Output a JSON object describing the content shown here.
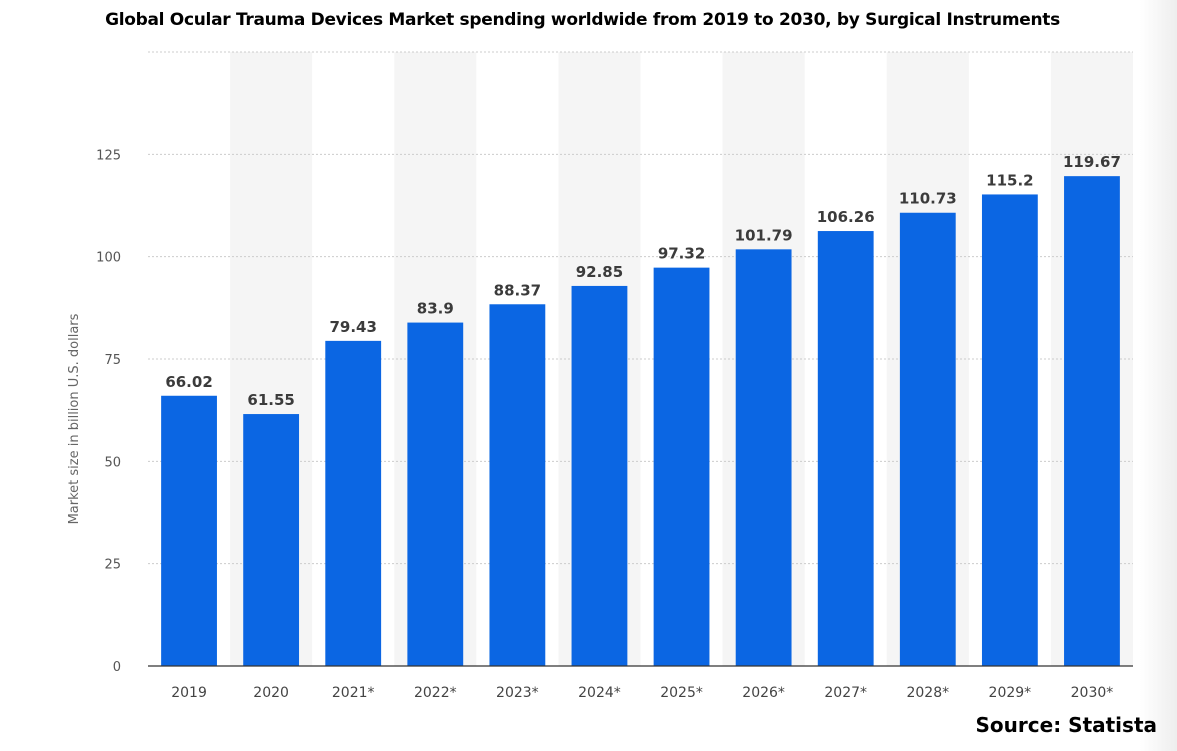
{
  "chart_data": {
    "type": "bar",
    "title": "Global Ocular Trauma Devices Market spending worldwide from 2019 to 2030, by Surgical Instruments",
    "xlabel": "",
    "ylabel": "Market size in billion U.S. dollars",
    "categories": [
      "2019",
      "2020",
      "2021*",
      "2022*",
      "2023*",
      "2024*",
      "2025*",
      "2026*",
      "2027*",
      "2028*",
      "2029*",
      "2030*"
    ],
    "values": [
      66.02,
      61.55,
      79.43,
      83.9,
      88.37,
      92.85,
      97.32,
      101.79,
      106.26,
      110.73,
      115.2,
      119.67
    ],
    "value_labels": [
      "66.02",
      "61.55",
      "79.43",
      "83.9",
      "88.37",
      "92.85",
      "97.32",
      "101.79",
      "106.26",
      "110.73",
      "115.2",
      "119.67"
    ],
    "ylim": [
      0,
      150
    ],
    "yticks": [
      0,
      25,
      50,
      75,
      100,
      125
    ],
    "grid": true,
    "grid_style": "dotted",
    "legend": "none",
    "colors": {
      "bar": "#0b66e3",
      "band": "#f5f5f5",
      "grid": "#cccccc",
      "axis": "#333333"
    }
  },
  "footer": {
    "source": "Source: Statista"
  }
}
